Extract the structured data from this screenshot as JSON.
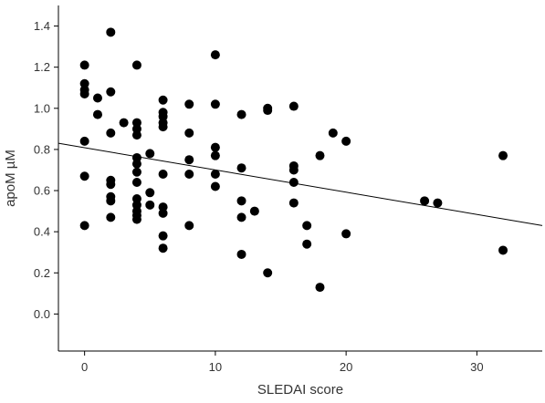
{
  "chart_data": {
    "type": "scatter",
    "xlabel": "SLEDAI score",
    "ylabel": "apoM µM",
    "xlim": [
      -2,
      35
    ],
    "ylim": [
      -0.18,
      1.5
    ],
    "xticks": [
      0,
      10,
      20,
      30
    ],
    "yticks": [
      0.0,
      0.2,
      0.4,
      0.6,
      0.8,
      1.0,
      1.2,
      1.4
    ],
    "xtick_labels": [
      "0",
      "10",
      "20",
      "30"
    ],
    "ytick_labels": [
      "0.0",
      "0.2",
      "0.4",
      "0.6",
      "0.8",
      "1.0",
      "1.2",
      "1.4"
    ],
    "grid": false,
    "colors": {
      "points": "#000000",
      "line": "#000000",
      "axis": "#000000",
      "text": "#333333"
    },
    "trend_line": {
      "x": [
        -2,
        35
      ],
      "y": [
        0.83,
        0.43
      ]
    },
    "points": [
      [
        0,
        1.21
      ],
      [
        0,
        1.12
      ],
      [
        0,
        1.09
      ],
      [
        0,
        1.07
      ],
      [
        0,
        0.84
      ],
      [
        0,
        0.67
      ],
      [
        0,
        0.43
      ],
      [
        1,
        1.05
      ],
      [
        1,
        0.97
      ],
      [
        2,
        1.37
      ],
      [
        2,
        1.08
      ],
      [
        2,
        0.88
      ],
      [
        2,
        0.65
      ],
      [
        2,
        0.63
      ],
      [
        2,
        0.57
      ],
      [
        2,
        0.55
      ],
      [
        2,
        0.47
      ],
      [
        3,
        0.93
      ],
      [
        4,
        1.21
      ],
      [
        4,
        0.93
      ],
      [
        4,
        0.9
      ],
      [
        4,
        0.87
      ],
      [
        4,
        0.76
      ],
      [
        4,
        0.73
      ],
      [
        4,
        0.69
      ],
      [
        4,
        0.64
      ],
      [
        4,
        0.56
      ],
      [
        4,
        0.53
      ],
      [
        4,
        0.5
      ],
      [
        4,
        0.48
      ],
      [
        4,
        0.46
      ],
      [
        5,
        0.78
      ],
      [
        5,
        0.59
      ],
      [
        5,
        0.53
      ],
      [
        6,
        1.04
      ],
      [
        6,
        0.98
      ],
      [
        6,
        0.96
      ],
      [
        6,
        0.93
      ],
      [
        6,
        0.91
      ],
      [
        6,
        0.68
      ],
      [
        6,
        0.52
      ],
      [
        6,
        0.49
      ],
      [
        6,
        0.38
      ],
      [
        6,
        0.32
      ],
      [
        8,
        1.02
      ],
      [
        8,
        0.88
      ],
      [
        8,
        0.75
      ],
      [
        8,
        0.68
      ],
      [
        8,
        0.43
      ],
      [
        10,
        1.26
      ],
      [
        10,
        1.02
      ],
      [
        10,
        0.81
      ],
      [
        10,
        0.77
      ],
      [
        10,
        0.68
      ],
      [
        10,
        0.62
      ],
      [
        12,
        0.97
      ],
      [
        12,
        0.71
      ],
      [
        12,
        0.55
      ],
      [
        12,
        0.47
      ],
      [
        12,
        0.29
      ],
      [
        13,
        0.5
      ],
      [
        14,
        1.0
      ],
      [
        14,
        0.99
      ],
      [
        14,
        0.2
      ],
      [
        16,
        1.01
      ],
      [
        16,
        0.72
      ],
      [
        16,
        0.7
      ],
      [
        16,
        0.64
      ],
      [
        16,
        0.54
      ],
      [
        17,
        0.43
      ],
      [
        17,
        0.34
      ],
      [
        18,
        0.77
      ],
      [
        18,
        0.13
      ],
      [
        19,
        0.88
      ],
      [
        20,
        0.84
      ],
      [
        20,
        0.39
      ],
      [
        26,
        0.55
      ],
      [
        27,
        0.54
      ],
      [
        32,
        0.77
      ],
      [
        32,
        0.31
      ]
    ]
  }
}
